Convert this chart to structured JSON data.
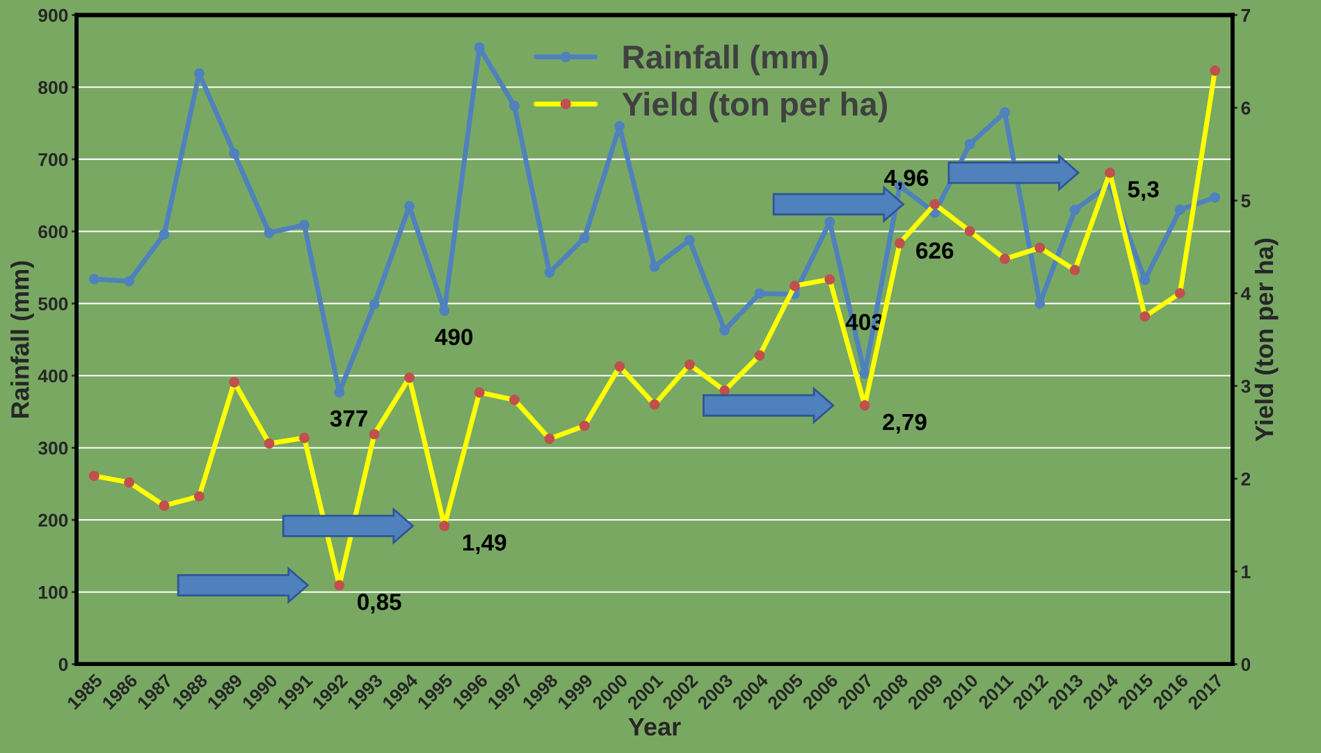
{
  "chart_data": {
    "type": "line",
    "xlabel": "Year",
    "ylabel": "Rainfall (mm)",
    "y2label": "Yield (ton per ha)",
    "categories": [
      "1985",
      "1986",
      "1987",
      "1988",
      "1989",
      "1990",
      "1991",
      "1992",
      "1993",
      "1994",
      "1995",
      "1996",
      "1997",
      "1998",
      "1999",
      "2000",
      "2001",
      "2002",
      "2003",
      "2004",
      "2005",
      "2006",
      "2007",
      "2008",
      "2009",
      "2010",
      "2011",
      "2012",
      "2013",
      "2014",
      "2015",
      "2016",
      "2017"
    ],
    "series": [
      {
        "name": "Rainfall (mm)",
        "color": "#4f81bd",
        "values": [
          534,
          531,
          596,
          819,
          708,
          598,
          609,
          377,
          499,
          635,
          490,
          855,
          774,
          543,
          591,
          746,
          551,
          588,
          463,
          514,
          513,
          613,
          403,
          663,
          626,
          721,
          765,
          500,
          630,
          665,
          533,
          630,
          647
        ],
        "value_labels": [
          null,
          null,
          null,
          null,
          null,
          null,
          null,
          "377",
          null,
          null,
          "490",
          null,
          null,
          null,
          null,
          null,
          null,
          null,
          null,
          null,
          null,
          null,
          "403",
          null,
          "626",
          null,
          null,
          null,
          null,
          null,
          null,
          null,
          null
        ]
      },
      {
        "name": "Yield (ton per ha)",
        "color": "#ffff00",
        "axis": "y2",
        "values": [
          2.03,
          1.96,
          1.71,
          1.81,
          3.04,
          2.38,
          2.44,
          0.85,
          2.48,
          3.09,
          1.49,
          2.93,
          2.85,
          2.43,
          2.57,
          3.21,
          2.8,
          3.23,
          2.95,
          3.33,
          4.08,
          4.15,
          2.79,
          4.54,
          4.96,
          4.67,
          4.37,
          4.49,
          4.25,
          5.3,
          3.75,
          4.0,
          6.4
        ],
        "value_labels": [
          null,
          null,
          null,
          null,
          null,
          null,
          null,
          "0,85",
          null,
          null,
          "1,49",
          null,
          null,
          null,
          null,
          null,
          null,
          null,
          null,
          null,
          null,
          null,
          "2,79",
          null,
          "4,96",
          null,
          null,
          null,
          null,
          "5,3",
          null,
          null,
          null
        ]
      }
    ],
    "ylim": [
      0,
      900
    ],
    "yticks": [
      0,
      100,
      200,
      300,
      400,
      500,
      600,
      700,
      800,
      900
    ],
    "y2lim": [
      0,
      7
    ],
    "y2ticks": [
      0,
      1,
      2,
      3,
      4,
      5,
      6,
      7
    ],
    "grid": "y",
    "legend": "top",
    "marker": "circle",
    "line_style": "solid"
  }
}
